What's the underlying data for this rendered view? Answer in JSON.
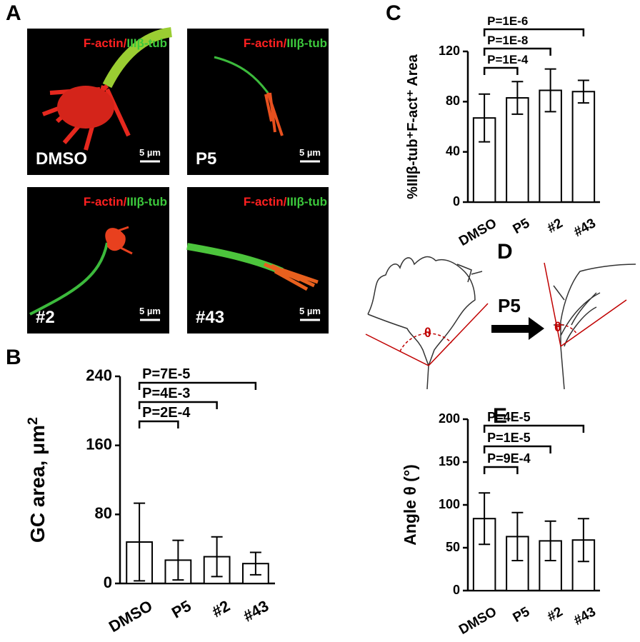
{
  "panel_labels": [
    "A",
    "B",
    "C",
    "D",
    "E"
  ],
  "images": [
    {
      "stain_red": "F-actin/",
      "stain_green": "IIIβ-tub",
      "label": "DMSO",
      "scale": "5 µm"
    },
    {
      "stain_red": "F-actin/",
      "stain_green": "IIIβ-tub",
      "label": "P5",
      "scale": "5 µm"
    },
    {
      "stain_red": "F-actin/",
      "stain_green": "IIIβ-tub",
      "label": "#2",
      "scale": "5 µm"
    },
    {
      "stain_red": "F-actin/",
      "stain_green": "IIIβ-tub",
      "label": "#43",
      "scale": "5 µm"
    }
  ],
  "diagram": {
    "treatment": "P5",
    "angle_left": "θ",
    "angle_right": "θ"
  },
  "chart_data": [
    {
      "type": "bar",
      "ylabel": "GC area, μm",
      "ylabel_superscript": "2",
      "categories": [
        "DMSO",
        "P5",
        "#2",
        "#43"
      ],
      "values": [
        48,
        27,
        31,
        23
      ],
      "errors": [
        45,
        23,
        23,
        13
      ],
      "ylim": [
        0,
        240
      ],
      "yticks": [
        0,
        80,
        160,
        240
      ],
      "annotations": [
        {
          "text": "P=2E-4",
          "between": [
            "DMSO",
            "P5"
          ]
        },
        {
          "text": "P=4E-3",
          "between": [
            "DMSO",
            "#2"
          ]
        },
        {
          "text": "P=7E-5",
          "between": [
            "DMSO",
            "#43"
          ]
        }
      ]
    },
    {
      "type": "bar",
      "ylabel": "%IIIβ-tub⁺F-act⁺ Area",
      "categories": [
        "DMSO",
        "P5",
        "#2",
        "#43"
      ],
      "values": [
        67,
        83,
        89,
        88
      ],
      "errors": [
        19,
        13,
        17,
        9
      ],
      "ylim": [
        0,
        120
      ],
      "yticks": [
        0,
        40,
        80,
        120
      ],
      "annotations": [
        {
          "text": "P=1E-4",
          "between": [
            "DMSO",
            "P5"
          ]
        },
        {
          "text": "P=1E-8",
          "between": [
            "DMSO",
            "#2"
          ]
        },
        {
          "text": "P=1E-6",
          "between": [
            "DMSO",
            "#43"
          ]
        }
      ]
    },
    {
      "type": "bar",
      "ylabel": "Angle θ (°)",
      "categories": [
        "DMSO",
        "P5",
        "#2",
        "#43"
      ],
      "values": [
        84,
        63,
        58,
        59
      ],
      "errors": [
        30,
        28,
        23,
        25
      ],
      "ylim": [
        0,
        200
      ],
      "yticks": [
        0,
        50,
        100,
        150,
        200
      ],
      "annotations": [
        {
          "text": "P=9E-4",
          "between": [
            "DMSO",
            "P5"
          ]
        },
        {
          "text": "P=1E-5",
          "between": [
            "DMSO",
            "#2"
          ]
        },
        {
          "text": "P=4E-5",
          "between": [
            "DMSO",
            "#43"
          ]
        }
      ]
    }
  ]
}
